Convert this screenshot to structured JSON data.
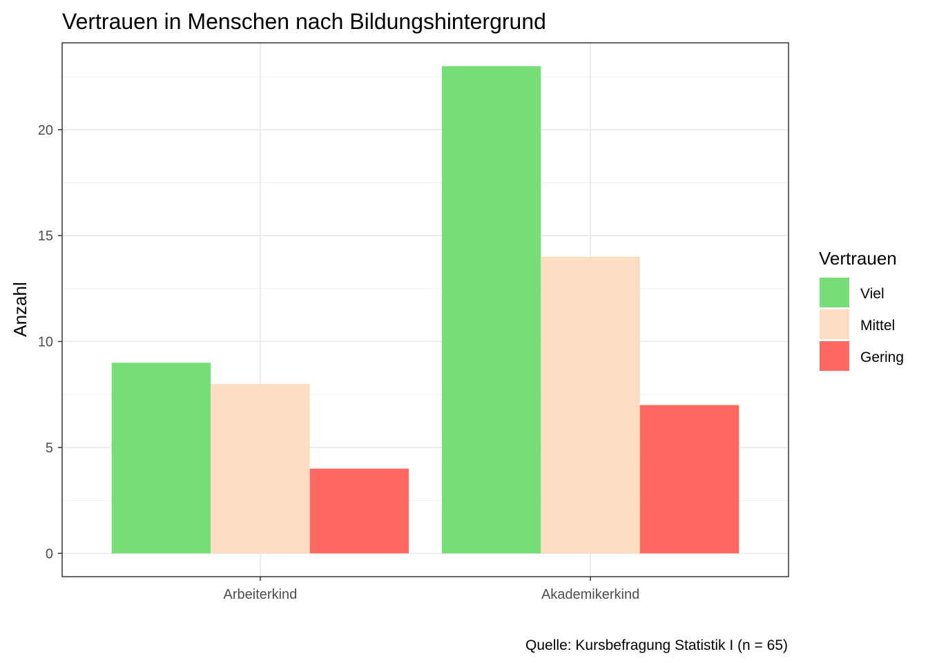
{
  "chart_data": {
    "type": "bar",
    "title": "Vertrauen in Menschen nach Bildungshintergrund",
    "ylabel": "Anzahl",
    "xlabel": "",
    "caption": "Quelle: Kursbefragung Statistik I (n = 65)",
    "categories": [
      "Arbeiterkind",
      "Akademikerkind"
    ],
    "series": [
      {
        "name": "Viel",
        "color": "#77DD77",
        "values": [
          9,
          23
        ]
      },
      {
        "name": "Mittel",
        "color": "#FDDDC2",
        "values": [
          8,
          14
        ]
      },
      {
        "name": "Gering",
        "color": "#FF6961",
        "values": [
          4,
          7
        ]
      }
    ],
    "ylim": [
      -1.1,
      24.1
    ],
    "yticks": [
      "0",
      "5",
      "10",
      "15",
      "20"
    ],
    "legend": {
      "title": "Vertrauen",
      "position": "right"
    },
    "grid": true
  }
}
